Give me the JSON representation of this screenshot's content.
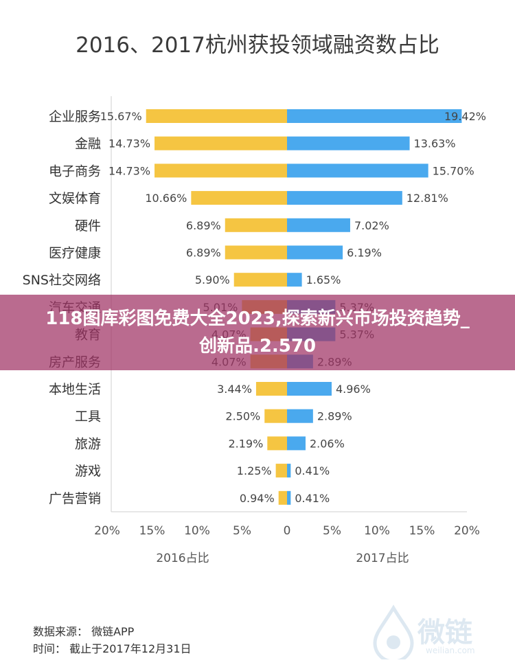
{
  "title": "2016、2017杭州获投领域融资数占比",
  "banner": "118图库彩图免费大全2023,探索新兴市场投资趋势_创新品.2.570",
  "source": "数据来源： 微链APP",
  "time": "时间： 截止于2017年12月31日",
  "watermark": {
    "text": "微链",
    "url": "weilian.com"
  },
  "colors": {
    "left": "#f5c542",
    "right": "#4aa9ee",
    "banner": "#a03264"
  },
  "chart_data": {
    "type": "bar",
    "orientation": "horizontal-butterfly",
    "categories": [
      "企业服务",
      "金融",
      "电子商务",
      "文娱体育",
      "硬件",
      "医疗健康",
      "SNS社交网络",
      "汽车交通",
      "教育",
      "房产服务",
      "本地生活",
      "工具",
      "旅游",
      "游戏",
      "广告营销"
    ],
    "series": [
      {
        "name": "2016占比",
        "values": [
          15.67,
          14.73,
          14.73,
          10.66,
          6.89,
          6.89,
          5.9,
          5.01,
          4.07,
          4.07,
          3.44,
          2.5,
          2.19,
          1.25,
          0.94
        ]
      },
      {
        "name": "2017占比",
        "values": [
          19.42,
          13.63,
          15.7,
          12.81,
          7.02,
          6.19,
          1.65,
          5.37,
          5.37,
          2.89,
          4.96,
          2.89,
          2.06,
          0.41,
          0.41
        ]
      }
    ],
    "value_labels_left": [
      "15.67%",
      "14.73%",
      "14.73%",
      "10.66%",
      "6.89%",
      "6.89%",
      "5.90%",
      "5.01%",
      "4.07%",
      "4.07%",
      "3.44%",
      "2.50%",
      "2.19%",
      "1.25%",
      "0.94%"
    ],
    "value_labels_right": [
      "19.42%",
      "13.63%",
      "15.70%",
      "12.81%",
      "7.02%",
      "6.19%",
      "1.65%",
      "5.37%",
      "5.37%",
      "2.89%",
      "4.96%",
      "2.89%",
      "2.06%",
      "0.41%",
      "0.41%"
    ],
    "xticks_left": [
      "20%",
      "15%",
      "10%",
      "5%"
    ],
    "xtick_zero": "0",
    "xticks_right": [
      "5%",
      "10%",
      "15%",
      "20%"
    ],
    "xlim": [
      -20,
      20
    ],
    "xlabel_left": "2016占比",
    "xlabel_right": "2017占比"
  }
}
